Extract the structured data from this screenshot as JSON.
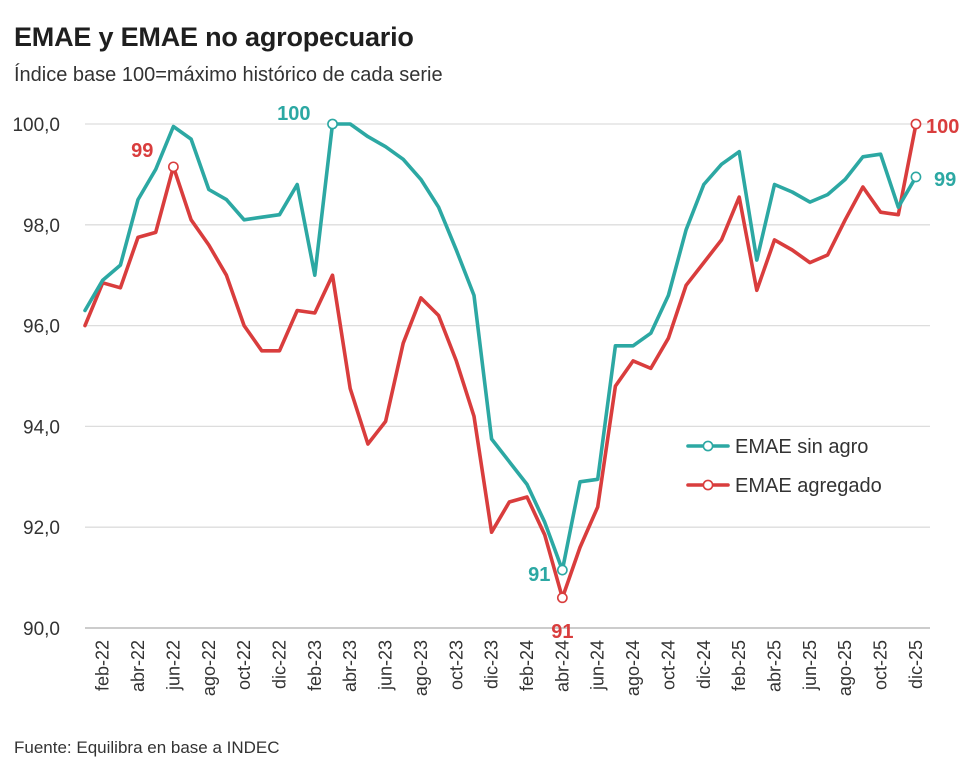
{
  "title": "EMAE y EMAE no agropecuario",
  "subtitle": "Índice base 100=máximo histórico de cada serie",
  "source": "Fuente: Equilibra en base a INDEC",
  "colors": {
    "sin_agro": "#2ca8a3",
    "agregado": "#d93d3d",
    "grid": "#dddddd"
  },
  "chart_data": {
    "type": "line",
    "title": "EMAE y EMAE no agropecuario",
    "ylim": [
      90,
      100
    ],
    "yticks": [
      90,
      92,
      94,
      96,
      98,
      100
    ],
    "ytick_labels": [
      "90,0",
      "92,0",
      "94,0",
      "96,0",
      "98,0",
      "100,0"
    ],
    "x_tick_labels": [
      "feb-22",
      "abr-22",
      "jun-22",
      "ago-22",
      "oct-22",
      "dic-22",
      "feb-23",
      "abr-23",
      "jun-23",
      "ago-23",
      "oct-23",
      "dic-23",
      "feb-24",
      "abr-24",
      "jun-24",
      "ago-24",
      "oct-24",
      "dic-24",
      "feb-25",
      "abr-25",
      "jun-25",
      "ago-25",
      "oct-25",
      "dic-25"
    ],
    "x": [
      "ene-22",
      "feb-22",
      "mar-22",
      "abr-22",
      "may-22",
      "jun-22",
      "jul-22",
      "ago-22",
      "sep-22",
      "oct-22",
      "nov-22",
      "dic-22",
      "ene-23",
      "feb-23",
      "mar-23",
      "abr-23",
      "may-23",
      "jun-23",
      "jul-23",
      "ago-23",
      "sep-23",
      "oct-23",
      "nov-23",
      "dic-23",
      "ene-24",
      "feb-24",
      "mar-24",
      "abr-24",
      "may-24",
      "jun-24",
      "jul-24",
      "ago-24",
      "sep-24",
      "oct-24",
      "nov-24",
      "dic-24",
      "ene-25",
      "feb-25",
      "mar-25",
      "abr-25",
      "may-25",
      "jun-25",
      "jul-25",
      "ago-25",
      "sep-25",
      "oct-25",
      "nov-25",
      "dic-25"
    ],
    "series": [
      {
        "name": "EMAE sin agro",
        "values": [
          96.3,
          96.9,
          97.2,
          98.5,
          99.1,
          99.95,
          99.7,
          98.7,
          98.5,
          98.1,
          98.15,
          98.2,
          98.8,
          97.0,
          100.0,
          100.0,
          99.75,
          99.55,
          99.3,
          98.9,
          98.35,
          97.5,
          96.6,
          93.75,
          93.3,
          92.85,
          92.1,
          91.15,
          92.9,
          92.95,
          95.6,
          95.6,
          95.85,
          96.6,
          97.9,
          98.8,
          99.2,
          99.45,
          97.3,
          98.8,
          98.65,
          98.45,
          98.6,
          98.9,
          99.35,
          99.4,
          98.35,
          98.95
        ],
        "labels": [
          {
            "index": 14,
            "text": "100"
          },
          {
            "index": 27,
            "text": "91"
          },
          {
            "index": 47,
            "text": "99"
          }
        ]
      },
      {
        "name": "EMAE agregado",
        "values": [
          96.0,
          96.85,
          96.75,
          97.75,
          97.85,
          99.15,
          98.1,
          97.6,
          97.0,
          96.0,
          95.5,
          95.5,
          96.3,
          96.25,
          97.0,
          94.75,
          93.65,
          94.1,
          95.65,
          96.55,
          96.2,
          95.3,
          94.2,
          91.9,
          92.5,
          92.6,
          91.85,
          90.6,
          91.6,
          92.4,
          94.8,
          95.3,
          95.15,
          95.75,
          96.8,
          97.25,
          97.7,
          98.55,
          96.7,
          97.7,
          97.5,
          97.25,
          97.4,
          98.1,
          98.75,
          98.25,
          98.2,
          100.0
        ],
        "labels": [
          {
            "index": 5,
            "text": "99"
          },
          {
            "index": 27,
            "text": "91"
          },
          {
            "index": 47,
            "text": "100"
          }
        ]
      }
    ],
    "legend": [
      "EMAE sin agro",
      "EMAE agregado"
    ],
    "grid": true,
    "legend_position": "center-right"
  }
}
